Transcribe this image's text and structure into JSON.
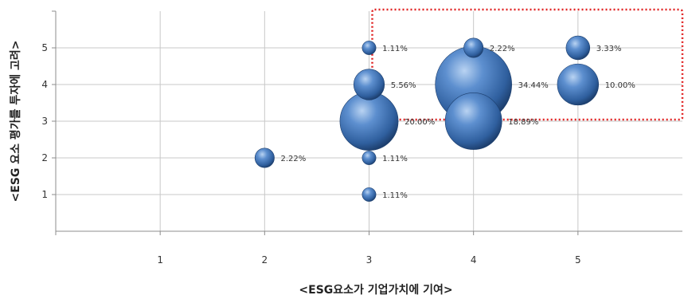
{
  "chart_data": {
    "type": "scatter",
    "subtype": "bubble",
    "xlabel": "<ESG요소가 기업가치에 기여>",
    "ylabel": "<ESG 요소 평가를 투자에 고려>",
    "xlim": [
      0,
      6
    ],
    "ylim": [
      0,
      6
    ],
    "xticks": [
      1,
      2,
      3,
      4,
      5
    ],
    "yticks": [
      1,
      2,
      3,
      4,
      5
    ],
    "grid": true,
    "legend": "none",
    "points": [
      {
        "x": 2,
        "y": 2,
        "size": 2.22,
        "label": "2.22%"
      },
      {
        "x": 3,
        "y": 1,
        "size": 1.11,
        "label": "1.11%"
      },
      {
        "x": 3,
        "y": 2,
        "size": 1.11,
        "label": "1.11%"
      },
      {
        "x": 3,
        "y": 3,
        "size": 20.0,
        "label": "20.00%"
      },
      {
        "x": 3,
        "y": 4,
        "size": 5.56,
        "label": "5.56%"
      },
      {
        "x": 3,
        "y": 5,
        "size": 1.11,
        "label": "1.11%"
      },
      {
        "x": 4,
        "y": 3,
        "size": 18.89,
        "label": "18.89%"
      },
      {
        "x": 4,
        "y": 4,
        "size": 34.44,
        "label": "34.44%"
      },
      {
        "x": 4,
        "y": 5,
        "size": 2.22,
        "label": "2.22%"
      },
      {
        "x": 5,
        "y": 4,
        "size": 10.0,
        "label": "10.00%"
      },
      {
        "x": 5,
        "y": 5,
        "size": 3.33,
        "label": "3.33%"
      }
    ],
    "highlight_region": {
      "x_from": 3,
      "x_to": 6,
      "y_from": 3,
      "y_to": 6,
      "style": "red dotted"
    },
    "colors": {
      "bubble": "#3a6fb0",
      "grid": "#c8c8c8",
      "highlight": "#e02020"
    }
  }
}
